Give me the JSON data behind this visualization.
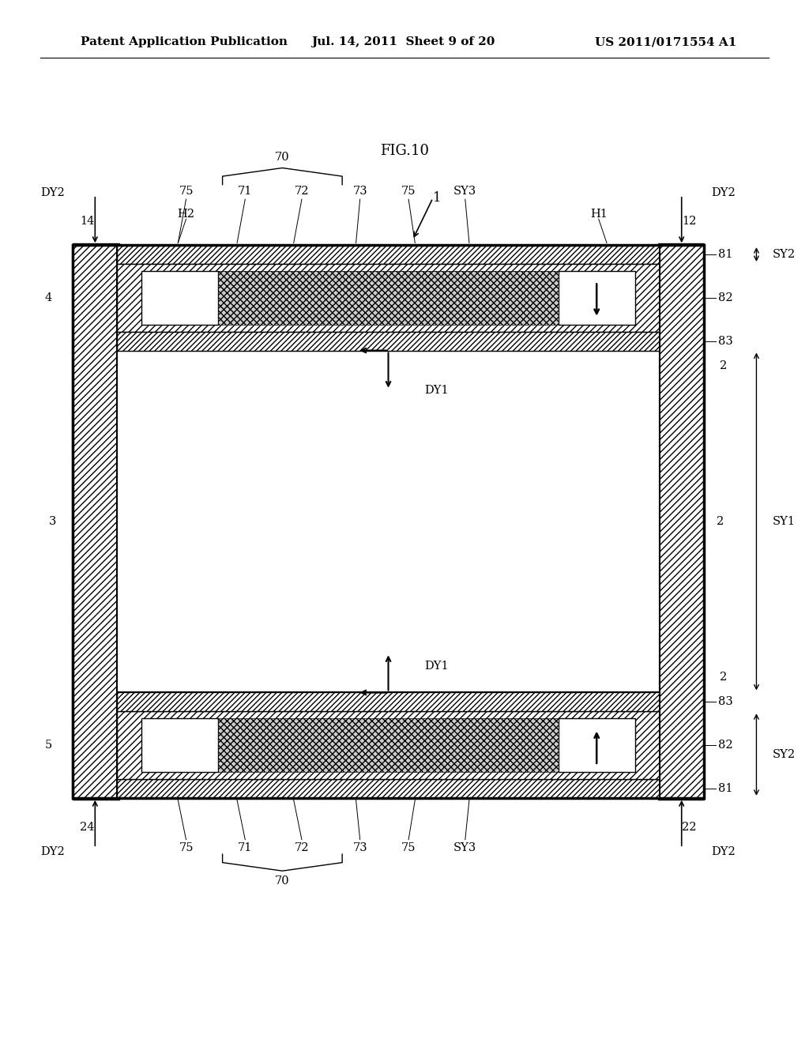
{
  "title_line1": "Patent Application Publication",
  "title_line2": "Jul. 14, 2011  Sheet 9 of 20",
  "title_line3": "US 2011/0171554 A1",
  "fig_label": "FIG.10",
  "bg_color": "#ffffff",
  "line_color": "#000000"
}
